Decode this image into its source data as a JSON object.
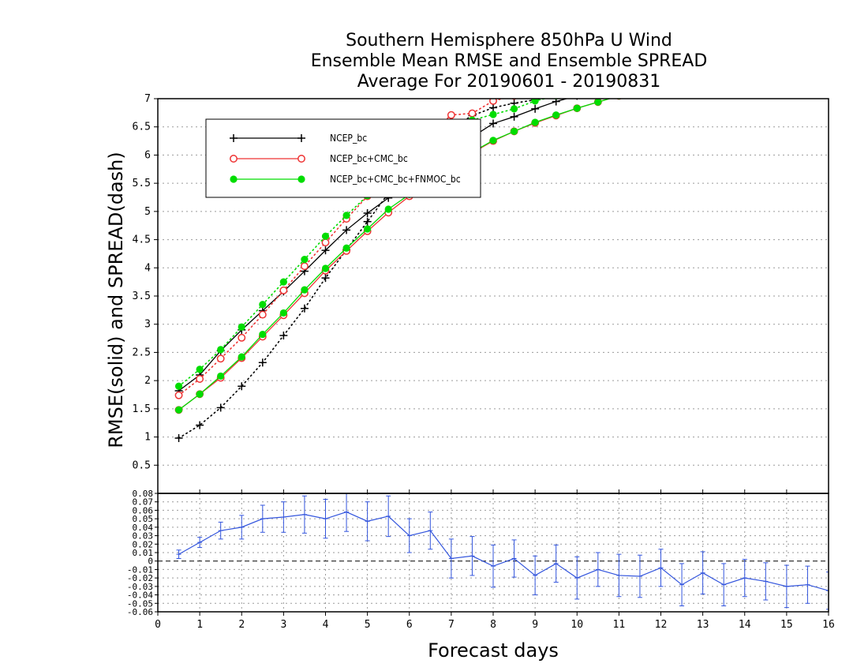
{
  "chart_data": [
    {
      "type": "line",
      "title": [
        "Southern Hemisphere 850hPa U Wind",
        "Ensemble Mean RMSE and Ensemble SPREAD",
        "Average For 20190601 - 20190831"
      ],
      "ylabel": "RMSE(solid)  and  SPREAD(dash)",
      "xlabel": "Forecast days",
      "xlim": [
        0,
        16
      ],
      "ylim": [
        0,
        7
      ],
      "x_ticks": [
        "0",
        "1",
        "2",
        "3",
        "4",
        "5",
        "6",
        "7",
        "8",
        "9",
        "10",
        "11",
        "12",
        "13",
        "14",
        "15",
        "16"
      ],
      "y_ticks": [
        "0.5",
        "1",
        "1.5",
        "2",
        "2.5",
        "3",
        "3.5",
        "4",
        "4.5",
        "5",
        "5.5",
        "6",
        "6.5",
        "7"
      ],
      "grid": true,
      "legend": "top-left",
      "x": [
        0.5,
        1,
        1.5,
        2,
        2.5,
        3,
        3.5,
        4,
        4.5,
        5,
        5.5,
        6,
        6.5,
        7,
        7.5,
        8,
        8.5,
        9,
        9.5,
        10,
        10.5,
        11
      ],
      "series": [
        {
          "name": "NCEP_bc",
          "color": "#000000",
          "marker": "plus",
          "rmse": [
            1.82,
            2.1,
            2.53,
            2.9,
            3.24,
            3.58,
            3.94,
            4.31,
            4.67,
            4.97,
            5.24,
            5.5,
            5.78,
            6.06,
            6.32,
            6.56,
            6.68,
            6.82,
            6.95,
            7.05,
            7.12,
            7.2
          ],
          "spread": [
            0.98,
            1.21,
            1.52,
            1.9,
            2.32,
            2.8,
            3.28,
            3.82,
            4.32,
            4.82,
            5.32,
            5.78,
            6.16,
            6.48,
            6.7,
            6.84,
            6.92,
            6.98,
            7.03,
            7.08,
            7.12,
            7.15
          ]
        },
        {
          "name": "NCEP_bc+CMC_bc",
          "color": "#ee3333",
          "marker": "open-circle",
          "rmse": [
            1.48,
            1.76,
            2.05,
            2.4,
            2.78,
            3.16,
            3.55,
            3.95,
            4.3,
            4.65,
            4.98,
            5.27,
            5.54,
            5.8,
            6.04,
            6.25,
            6.42,
            6.57,
            6.7,
            6.83,
            6.94,
            7.05
          ],
          "spread": [
            1.74,
            2.03,
            2.39,
            2.76,
            3.17,
            3.6,
            4.03,
            4.45,
            4.87,
            5.27,
            5.66,
            6.02,
            6.38,
            6.71,
            6.74,
            6.96,
            7.05,
            7.12,
            7.18,
            7.22,
            7.26,
            7.3
          ]
        },
        {
          "name": "NCEP_bc+CMC_bc+FNMOC_bc",
          "color": "#00dd00",
          "marker": "filled-circle",
          "rmse": [
            1.48,
            1.76,
            2.08,
            2.42,
            2.82,
            3.2,
            3.61,
            3.99,
            4.35,
            4.69,
            5.04,
            5.3,
            5.56,
            5.82,
            6.05,
            6.26,
            6.42,
            6.58,
            6.71,
            6.83,
            6.94,
            7.05
          ],
          "spread": [
            1.9,
            2.2,
            2.55,
            2.95,
            3.35,
            3.75,
            4.15,
            4.56,
            4.93,
            5.28,
            5.62,
            5.96,
            6.25,
            6.5,
            6.62,
            6.72,
            6.82,
            6.96,
            7.05,
            7.12,
            7.18,
            7.22
          ]
        }
      ]
    },
    {
      "type": "line",
      "title": "",
      "xlim": [
        0,
        16
      ],
      "ylim": [
        -0.06,
        0.08
      ],
      "y_ticks": [
        "0.08",
        "0.07",
        "0.06",
        "0.05",
        "0.04",
        "0.03",
        "0.02",
        "0.01",
        "0",
        "-0.01",
        "-0.02",
        "-0.03",
        "-0.04",
        "-0.05",
        "-0.06"
      ],
      "grid": true,
      "color": "#3355dd",
      "x": [
        0.5,
        1,
        1.5,
        2,
        2.5,
        3,
        3.5,
        4,
        4.5,
        5,
        5.5,
        6,
        6.5,
        7,
        7.5,
        8,
        8.5,
        9,
        9.5,
        10,
        10.5,
        11,
        11.5,
        12,
        12.5,
        13,
        13.5,
        14,
        14.5,
        15,
        15.5,
        16
      ],
      "value": [
        0.008,
        0.022,
        0.036,
        0.04,
        0.05,
        0.052,
        0.055,
        0.05,
        0.058,
        0.047,
        0.053,
        0.03,
        0.036,
        0.003,
        0.006,
        -0.006,
        0.003,
        -0.017,
        -0.003,
        -0.02,
        -0.01,
        -0.017,
        -0.018,
        -0.008,
        -0.028,
        -0.014,
        -0.028,
        -0.02,
        -0.024,
        -0.03,
        -0.028,
        -0.035
      ],
      "error": [
        0.005,
        0.006,
        0.01,
        0.014,
        0.016,
        0.018,
        0.022,
        0.023,
        0.023,
        0.023,
        0.024,
        0.02,
        0.022,
        0.023,
        0.023,
        0.025,
        0.022,
        0.023,
        0.022,
        0.025,
        0.02,
        0.025,
        0.025,
        0.022,
        0.025,
        0.025,
        0.025,
        0.022,
        0.022,
        0.025,
        0.022,
        0.022
      ]
    }
  ]
}
